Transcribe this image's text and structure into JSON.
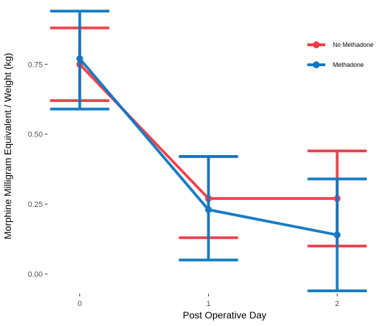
{
  "chart_data": {
    "type": "line",
    "xlabel": "Post Operative Day",
    "ylabel": "Morphine Milligram Equivalent / Weight (kg)",
    "x": [
      0,
      1,
      2
    ],
    "x_tick_labels": [
      "0",
      "1",
      "2"
    ],
    "y_ticks": [
      0.0,
      0.25,
      0.5,
      0.75
    ],
    "y_tick_labels": [
      "0.00",
      "0.25",
      "0.50",
      "0.75"
    ],
    "ylim": [
      -0.07,
      0.97
    ],
    "xlim": [
      -0.25,
      2.25
    ],
    "grid": false,
    "error_bars": true,
    "legend_position": "top-right",
    "series": [
      {
        "name": "No Methadone",
        "color": "#F23A45",
        "values": [
          0.75,
          0.27,
          0.27
        ],
        "err_low": [
          0.62,
          0.13,
          0.1
        ],
        "err_high": [
          0.88,
          0.42,
          0.44
        ]
      },
      {
        "name": "Methadone",
        "color": "#0C77C2",
        "values": [
          0.77,
          0.23,
          0.14
        ],
        "err_low": [
          0.59,
          0.05,
          -0.06
        ],
        "err_high": [
          0.94,
          0.42,
          0.34
        ]
      }
    ]
  }
}
